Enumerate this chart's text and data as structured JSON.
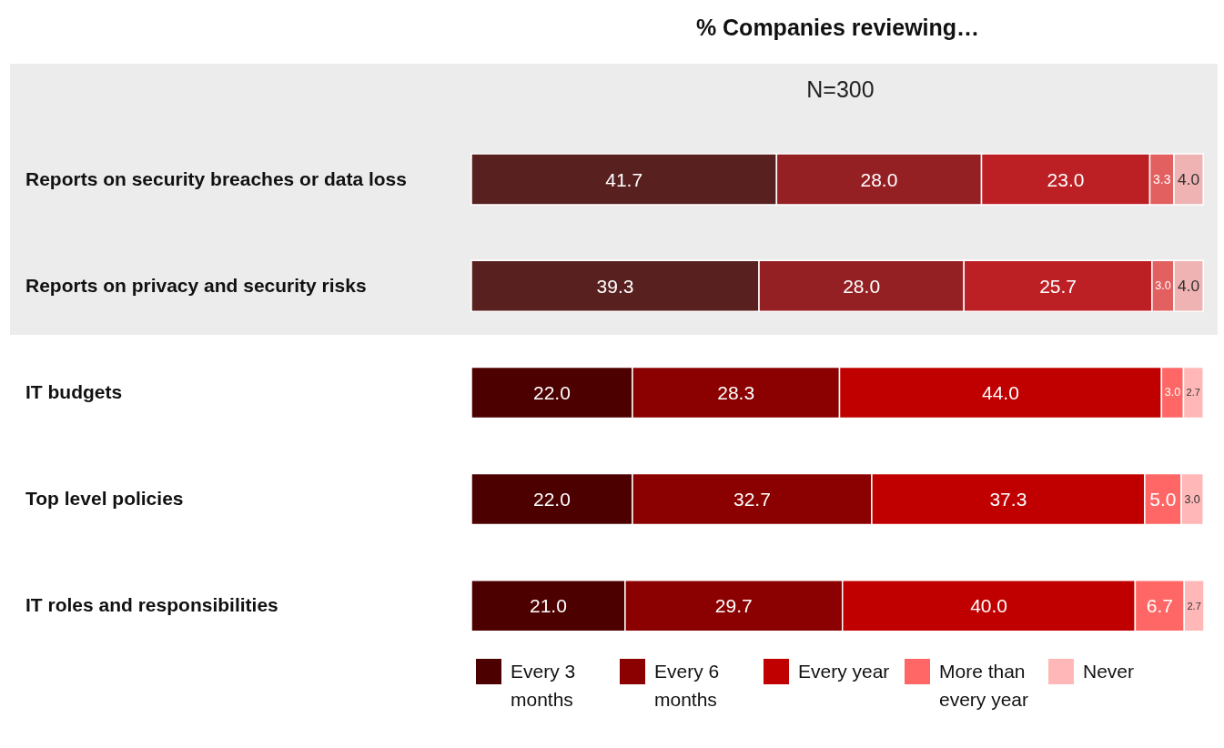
{
  "chart_data": {
    "type": "bar",
    "orientation": "horizontal",
    "stacked": true,
    "title": "% Companies reviewing…",
    "categories": [
      "Reports on security breaches or data loss",
      "Reports on privacy and security risks",
      "IT budgets",
      "Top level policies",
      "IT roles and responsibilities"
    ],
    "series": [
      {
        "name": "Every 3 months",
        "color": "#4d0000",
        "colors": [
          "#58201f",
          "#58201f",
          "#4d0000",
          "#4d0000",
          "#4d0000"
        ],
        "values": [
          41.7,
          39.3,
          22.0,
          22.0,
          21.0
        ],
        "value_labels": [
          "41.7",
          "39.3",
          "22.0",
          "22.0",
          "21.0"
        ]
      },
      {
        "name": "Every 6 months",
        "color": "#8b0000",
        "colors": [
          "#942023",
          "#942023",
          "#8b0000",
          "#8b0000",
          "#8b0000"
        ],
        "values": [
          28.0,
          28.0,
          28.3,
          32.7,
          29.7
        ],
        "value_labels": [
          "28.0",
          "28.0",
          "28.3",
          "32.7",
          "29.7"
        ]
      },
      {
        "name": "Every year",
        "color": "#c00000",
        "colors": [
          "#bd2024",
          "#bd2024",
          "#c00000",
          "#c00000",
          "#c00000"
        ],
        "values": [
          23.0,
          25.7,
          44.0,
          37.3,
          40.0
        ],
        "value_labels": [
          "23.0",
          "25.7",
          "44.0",
          "37.3",
          "40.0"
        ]
      },
      {
        "name": "More than every year",
        "color": "#ff6666",
        "colors": [
          "#e26060",
          "#e26060",
          "#ff6666",
          "#ff6666",
          "#ff6666"
        ],
        "values": [
          3.3,
          3.0,
          3.0,
          5.0,
          6.7
        ],
        "value_labels": [
          "3.3",
          "3.0",
          "3.0",
          "5.0",
          "6.7"
        ]
      },
      {
        "name": "Never",
        "color": "#ffb7b7",
        "colors": [
          "#efb3b3",
          "#efb3b3",
          "#ffb7b7",
          "#ffb7b7",
          "#ffb7b7"
        ],
        "values": [
          4.0,
          4.0,
          2.7,
          3.0,
          2.7
        ],
        "value_labels": [
          "4.0",
          "4.0",
          "2.7",
          "3.0",
          "2.7"
        ]
      }
    ],
    "bands": [
      {
        "axis": "y",
        "from": "Reports on security breaches or data loss",
        "to": "Reports on privacy and security risks",
        "label": "N=300",
        "color": "#ececec"
      }
    ],
    "legend": "bottom",
    "grid": false
  }
}
